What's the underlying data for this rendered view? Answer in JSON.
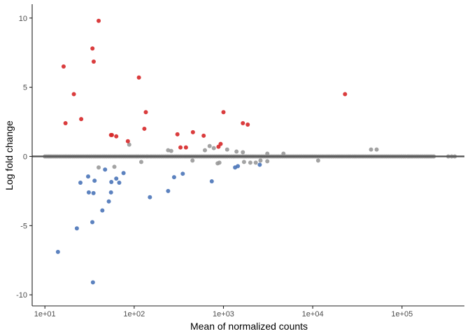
{
  "chart_data": {
    "type": "scatter",
    "title": "",
    "xlabel": "Mean of normalized counts",
    "ylabel": "Log fold change",
    "x_scale": "log10",
    "xlim": [
      7.2,
      500000
    ],
    "ylim": [
      -10.8,
      11
    ],
    "x_ticks": [
      10,
      100,
      1000,
      10000,
      100000
    ],
    "x_tick_labels": [
      "1e+01",
      "1e+02",
      "1e+03",
      "1e+04",
      "1e+05"
    ],
    "y_ticks": [
      -10,
      -5,
      0,
      5,
      10
    ],
    "y_tick_labels": [
      "-10",
      "-5",
      "0",
      "5",
      "10"
    ],
    "grid": false,
    "legend": "none",
    "hline_y": 0,
    "colors": {
      "up": "#d62728",
      "down": "#4a74b8",
      "ns": "#999999",
      "hline": "#555555",
      "axis": "#222222"
    },
    "series": [
      {
        "group": "up",
        "points": [
          [
            16.2,
            6.5
          ],
          [
            17.0,
            2.4
          ],
          [
            21.1,
            4.5
          ],
          [
            25.5,
            2.7
          ],
          [
            34.1,
            7.8
          ],
          [
            35.2,
            6.85
          ],
          [
            40.0,
            9.8
          ],
          [
            55.0,
            1.55
          ],
          [
            56.3,
            1.55
          ],
          [
            63.0,
            1.45
          ],
          [
            85.0,
            1.1
          ],
          [
            113.0,
            5.7
          ],
          [
            130.0,
            2.0
          ],
          [
            135.0,
            3.2
          ],
          [
            305.0,
            1.6
          ],
          [
            330.0,
            0.65
          ],
          [
            380.0,
            0.65
          ],
          [
            455.0,
            1.75
          ],
          [
            600.0,
            1.5
          ],
          [
            880.0,
            0.7
          ],
          [
            930.0,
            0.9
          ],
          [
            1000.0,
            3.2
          ],
          [
            1650.0,
            2.4
          ],
          [
            1870.0,
            2.3
          ],
          [
            23000.0,
            4.5
          ]
        ]
      },
      {
        "group": "down",
        "points": [
          [
            14.0,
            -6.9
          ],
          [
            22.8,
            -5.2
          ],
          [
            25.0,
            -1.9
          ],
          [
            30.5,
            -1.45
          ],
          [
            31.0,
            -2.6
          ],
          [
            34.0,
            -4.75
          ],
          [
            34.5,
            -9.1
          ],
          [
            35.0,
            -2.65
          ],
          [
            36.0,
            -1.75
          ],
          [
            44.0,
            -3.9
          ],
          [
            47.2,
            -0.95
          ],
          [
            52.0,
            -3.25
          ],
          [
            55.0,
            -2.6
          ],
          [
            55.5,
            -1.85
          ],
          [
            63.0,
            -1.6
          ],
          [
            68.0,
            -1.9
          ],
          [
            76.0,
            -1.2
          ],
          [
            150.0,
            -2.95
          ],
          [
            240.0,
            -2.5
          ],
          [
            280.0,
            -1.5
          ],
          [
            350.0,
            -1.25
          ],
          [
            740.0,
            -1.8
          ],
          [
            1350.0,
            -0.8
          ],
          [
            1450.0,
            -0.7
          ],
          [
            2550.0,
            -0.6
          ]
        ]
      },
      {
        "group": "ns",
        "points": [
          [
            40.0,
            -0.8
          ],
          [
            60.0,
            -0.75
          ],
          [
            88.0,
            0.85
          ],
          [
            120.0,
            -0.4
          ],
          [
            240.0,
            0.45
          ],
          [
            260.0,
            0.4
          ],
          [
            450.0,
            -0.3
          ],
          [
            620.0,
            0.45
          ],
          [
            700.0,
            0.75
          ],
          [
            780.0,
            0.6
          ],
          [
            860.0,
            -0.5
          ],
          [
            900.0,
            -0.45
          ],
          [
            1100.0,
            0.5
          ],
          [
            1400.0,
            0.35
          ],
          [
            1650.0,
            0.3
          ],
          [
            1700.0,
            -0.4
          ],
          [
            2000.0,
            -0.45
          ],
          [
            2300.0,
            -0.45
          ],
          [
            2600.0,
            -0.3
          ],
          [
            3100.0,
            -0.35
          ],
          [
            3100.0,
            0.2
          ],
          [
            4700.0,
            0.2
          ],
          [
            11500.0,
            -0.3
          ],
          [
            45000.0,
            0.5
          ],
          [
            52000.0,
            0.5
          ],
          [
            10.0,
            0.0
          ],
          [
            10.5,
            0.0
          ],
          [
            11.0,
            0.0
          ],
          [
            11.5,
            0.0
          ],
          [
            12.0,
            0.0
          ],
          [
            12.6,
            0.0
          ],
          [
            13.2,
            0.0
          ],
          [
            13.8,
            0.0
          ],
          [
            14.5,
            0.0
          ],
          [
            15.2,
            0.0
          ],
          [
            16.0,
            0.0
          ],
          [
            16.8,
            0.0
          ],
          [
            17.6,
            0.0
          ],
          [
            18.5,
            0.0
          ],
          [
            19.4,
            0.0
          ],
          [
            20.4,
            0.0
          ],
          [
            21.4,
            0.0
          ],
          [
            22.5,
            0.0
          ],
          [
            23.6,
            0.0
          ],
          [
            24.8,
            0.0
          ],
          [
            26.0,
            0.0
          ],
          [
            27.3,
            0.0
          ],
          [
            28.7,
            0.0
          ],
          [
            30.1,
            0.0
          ],
          [
            31.6,
            0.0
          ],
          [
            33.2,
            0.0
          ],
          [
            34.9,
            0.0
          ],
          [
            36.6,
            0.0
          ],
          [
            38.4,
            0.0
          ],
          [
            40.3,
            0.0
          ],
          [
            42.3,
            0.0
          ],
          [
            44.5,
            0.0
          ],
          [
            46.7,
            0.0
          ],
          [
            49.0,
            0.0
          ],
          [
            51.5,
            0.0
          ],
          [
            54.0,
            0.0
          ],
          [
            56.7,
            0.0
          ],
          [
            59.6,
            0.0
          ],
          [
            62.5,
            0.0
          ],
          [
            65.7,
            0.0
          ],
          [
            69.0,
            0.0
          ],
          [
            72.4,
            0.0
          ],
          [
            76.0,
            0.0
          ],
          [
            79.8,
            0.0
          ],
          [
            83.8,
            0.0
          ],
          [
            88.0,
            0.0
          ],
          [
            92.4,
            0.0
          ],
          [
            97.0,
            0.0
          ],
          [
            102.0,
            0.0
          ],
          [
            107.0,
            0.0
          ],
          [
            112.0,
            0.0
          ],
          [
            118.0,
            0.0
          ],
          [
            124.0,
            0.0
          ],
          [
            130.0,
            0.0
          ],
          [
            137.0,
            0.0
          ],
          [
            143.0,
            0.0
          ],
          [
            151.0,
            0.0
          ],
          [
            158.0,
            0.0
          ],
          [
            166.0,
            0.0
          ],
          [
            174.0,
            0.0
          ],
          [
            183.0,
            0.0
          ],
          [
            192.0,
            0.0
          ],
          [
            202.0,
            0.0
          ],
          [
            212.0,
            0.0
          ],
          [
            223.0,
            0.0
          ],
          [
            234.0,
            0.0
          ],
          [
            245.0,
            0.0
          ],
          [
            258.0,
            0.0
          ],
          [
            270.0,
            0.0
          ],
          [
            284.0,
            0.0
          ],
          [
            298.0,
            0.0
          ],
          [
            313.0,
            0.0
          ],
          [
            329.0,
            0.0
          ],
          [
            345.0,
            0.0
          ],
          [
            363.0,
            0.0
          ],
          [
            381.0,
            0.0
          ],
          [
            400.0,
            0.0
          ],
          [
            420.0,
            0.0
          ],
          [
            441.0,
            0.0
          ],
          [
            463.0,
            0.0
          ],
          [
            486.0,
            0.0
          ],
          [
            510.0,
            0.0
          ],
          [
            536.0,
            0.0
          ],
          [
            563.0,
            0.0
          ],
          [
            591.0,
            0.0
          ],
          [
            620.0,
            0.0
          ],
          [
            651.0,
            0.0
          ],
          [
            684.0,
            0.0
          ],
          [
            718.0,
            0.0
          ],
          [
            754.0,
            0.0
          ],
          [
            792.0,
            0.0
          ],
          [
            831.0,
            0.0
          ],
          [
            873.0,
            0.0
          ],
          [
            916.0,
            0.0
          ],
          [
            962.0,
            0.0
          ],
          [
            1010.0,
            0.0
          ],
          [
            1060.0,
            0.0
          ],
          [
            1110.0,
            0.0
          ],
          [
            1170.0,
            0.0
          ],
          [
            1230.0,
            0.0
          ],
          [
            1290.0,
            0.0
          ],
          [
            1350.0,
            0.0
          ],
          [
            1420.0,
            0.0
          ],
          [
            1490.0,
            0.0
          ],
          [
            1570.0,
            0.0
          ],
          [
            1650.0,
            0.0
          ],
          [
            1730.0,
            0.0
          ],
          [
            1810.0,
            0.0
          ],
          [
            1900.0,
            0.0
          ],
          [
            2000.0,
            0.0
          ],
          [
            2100.0,
            0.0
          ],
          [
            2200.0,
            0.0
          ],
          [
            2310.0,
            0.0
          ],
          [
            2430.0,
            0.0
          ],
          [
            2550.0,
            0.0
          ],
          [
            2680.0,
            0.0
          ],
          [
            2810.0,
            0.0
          ],
          [
            2950.0,
            0.0
          ],
          [
            3100.0,
            0.0
          ],
          [
            3250.0,
            0.0
          ],
          [
            3420.0,
            0.0
          ],
          [
            3590.0,
            0.0
          ],
          [
            3770.0,
            0.0
          ],
          [
            3960.0,
            0.0
          ],
          [
            4150.0,
            0.0
          ],
          [
            4360.0,
            0.0
          ],
          [
            4580.0,
            0.0
          ],
          [
            4810.0,
            0.0
          ],
          [
            5050.0,
            0.0
          ],
          [
            5300.0,
            0.0
          ],
          [
            5570.0,
            0.0
          ],
          [
            5850.0,
            0.0
          ],
          [
            6140.0,
            0.0
          ],
          [
            6450.0,
            0.0
          ],
          [
            6770.0,
            0.0
          ],
          [
            7110.0,
            0.0
          ],
          [
            7460.0,
            0.0
          ],
          [
            7840.0,
            0.0
          ],
          [
            8230.0,
            0.0
          ],
          [
            8640.0,
            0.0
          ],
          [
            9070.0,
            0.0
          ],
          [
            9530.0,
            0.0
          ],
          [
            10000.0,
            0.0
          ],
          [
            10500.0,
            0.0
          ],
          [
            11000.0,
            0.0
          ],
          [
            11600.0,
            0.0
          ],
          [
            12200.0,
            0.0
          ],
          [
            12800.0,
            0.0
          ],
          [
            13400.0,
            0.0
          ],
          [
            14100.0,
            0.0
          ],
          [
            14800.0,
            0.0
          ],
          [
            15500.0,
            0.0
          ],
          [
            16300.0,
            0.0
          ],
          [
            17100.0,
            0.0
          ],
          [
            18000.0,
            0.0
          ],
          [
            18900.0,
            0.0
          ],
          [
            19800.0,
            0.0
          ],
          [
            20800.0,
            0.0
          ],
          [
            21800.0,
            0.0
          ],
          [
            22900.0,
            0.0
          ],
          [
            24100.0,
            0.0
          ],
          [
            25300.0,
            0.0
          ],
          [
            26500.0,
            0.0
          ],
          [
            27900.0,
            0.0
          ],
          [
            29300.0,
            0.0
          ],
          [
            30700.0,
            0.0
          ],
          [
            32300.0,
            0.0
          ],
          [
            33900.0,
            0.0
          ],
          [
            35600.0,
            0.0
          ],
          [
            37300.0,
            0.0
          ],
          [
            39200.0,
            0.0
          ],
          [
            41200.0,
            0.0
          ],
          [
            43200.0,
            0.0
          ],
          [
            45400.0,
            0.0
          ],
          [
            47600.0,
            0.0
          ],
          [
            50000.0,
            0.0
          ],
          [
            52500.0,
            0.0
          ],
          [
            55200.0,
            0.0
          ],
          [
            58000.0,
            0.0
          ],
          [
            60800.0,
            0.0
          ],
          [
            63900.0,
            0.0
          ],
          [
            67100.0,
            0.0
          ],
          [
            70400.0,
            0.0
          ],
          [
            74000.0,
            0.0
          ],
          [
            77700.0,
            0.0
          ],
          [
            81500.0,
            0.0
          ],
          [
            85600.0,
            0.0
          ],
          [
            89900.0,
            0.0
          ],
          [
            94400.0,
            0.0
          ],
          [
            99100.0,
            0.0
          ],
          [
            104000.0,
            0.0
          ],
          [
            109000.0,
            0.0
          ],
          [
            115000.0,
            0.0
          ],
          [
            120000.0,
            0.0
          ],
          [
            126000.0,
            0.0
          ],
          [
            132000.0,
            0.0
          ],
          [
            139000.0,
            0.0
          ],
          [
            146000.0,
            0.0
          ],
          [
            153000.0,
            0.0
          ],
          [
            161000.0,
            0.0
          ],
          [
            169000.0,
            0.0
          ],
          [
            178000.0,
            0.0
          ],
          [
            187000.0,
            0.0
          ],
          [
            196000.0,
            0.0
          ],
          [
            206000.0,
            0.0
          ],
          [
            216000.0,
            0.0
          ],
          [
            227000.0,
            0.0
          ],
          [
            330000.0,
            0.0
          ],
          [
            360000.0,
            0.0
          ],
          [
            390000.0,
            0.0
          ]
        ]
      }
    ]
  }
}
